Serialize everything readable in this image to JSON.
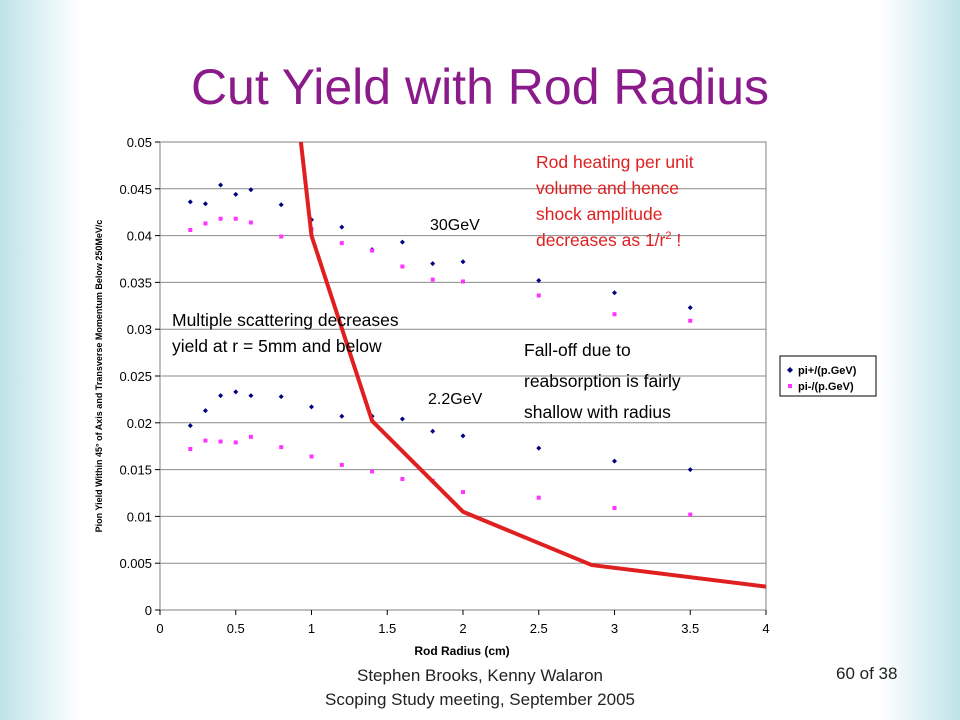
{
  "slide": {
    "title": "Cut Yield with Rod Radius",
    "footer_line1": "Stephen Brooks, Kenny Walaron",
    "footer_line2": "Scoping Study meeting, September 2005",
    "page_number": "60 of 38"
  },
  "chart_data": {
    "type": "scatter",
    "xlabel": "Rod Radius (cm)",
    "ylabel": "Pion Yield Within 45° of Axis and Transverse Momentum Below 250MeV/c",
    "xlim": [
      0,
      4
    ],
    "ylim": [
      0,
      0.05
    ],
    "x_ticks": [
      "0",
      "0.5",
      "1",
      "1.5",
      "2",
      "2.5",
      "3",
      "3.5",
      "4"
    ],
    "y_ticks": [
      "0",
      "0.005",
      "0.01",
      "0.015",
      "0.02",
      "0.025",
      "0.03",
      "0.035",
      "0.04",
      "0.045",
      "0.05"
    ],
    "grid": "horizontal",
    "legend_position": "right",
    "series": [
      {
        "name": "pi+/(p.GeV)",
        "color": "#000080",
        "marker": "diamond",
        "x": [
          0.2,
          0.3,
          0.4,
          0.5,
          0.6,
          0.8,
          1.0,
          1.2,
          1.4,
          1.6,
          1.8,
          2.0,
          2.5,
          3.0,
          3.5,
          0.2,
          0.3,
          0.4,
          0.5,
          0.6,
          0.8,
          1.0,
          1.2,
          1.4,
          1.6,
          1.8,
          2.0,
          2.5,
          3.0,
          3.5
        ],
        "y": [
          0.0436,
          0.0434,
          0.0454,
          0.0444,
          0.0449,
          0.0433,
          0.0417,
          0.0409,
          0.0385,
          0.0393,
          0.037,
          0.0372,
          0.0352,
          0.0339,
          0.0323,
          0.0197,
          0.0213,
          0.0229,
          0.0233,
          0.0229,
          0.0228,
          0.0217,
          0.0207,
          0.0207,
          0.0204,
          0.0191,
          0.0186,
          0.0173,
          0.0159,
          0.015
        ]
      },
      {
        "name": "pi-/(p.GeV)",
        "color": "#ff33ff",
        "marker": "square",
        "x": [
          0.2,
          0.3,
          0.4,
          0.5,
          0.6,
          0.8,
          1.0,
          1.2,
          1.4,
          1.6,
          1.8,
          2.0,
          2.5,
          3.0,
          3.5,
          0.2,
          0.3,
          0.4,
          0.5,
          0.6,
          0.8,
          1.0,
          1.2,
          1.4,
          1.6,
          1.8,
          2.0,
          2.5,
          3.0,
          3.5
        ],
        "y": [
          0.0406,
          0.0413,
          0.0418,
          0.0418,
          0.0414,
          0.0399,
          0.0407,
          0.0392,
          0.0384,
          0.0367,
          0.0353,
          0.0351,
          0.0336,
          0.0316,
          0.0309,
          0.0172,
          0.0181,
          0.018,
          0.0179,
          0.0185,
          0.0174,
          0.0164,
          0.0155,
          0.0148,
          0.014,
          0.0138,
          0.0126,
          0.012,
          0.0109,
          0.0102
        ]
      }
    ],
    "heating_curve": {
      "color": "#e02020",
      "x": [
        0.93,
        1.0,
        1.4,
        2.0,
        2.85,
        4.0
      ],
      "y": [
        0.05,
        0.04,
        0.0202,
        0.0105,
        0.0048,
        0.0025
      ]
    },
    "annotations": {
      "energy_high": "30GeV",
      "energy_low": "2.2GeV",
      "heating_line1": "Rod heating per unit",
      "heating_line2": "volume and hence",
      "heating_line3": "shock amplitude",
      "heating_line4_prefix": "decreases as 1/r",
      "heating_sup": "2",
      "heating_suffix": " !",
      "scattering_line1": "Multiple scattering decreases",
      "scattering_line2": "yield at r = 5mm and below",
      "falloff_line1": "Fall-off due to",
      "falloff_line2": "reabsorption is fairly",
      "falloff_line3": "shallow with radius"
    }
  }
}
